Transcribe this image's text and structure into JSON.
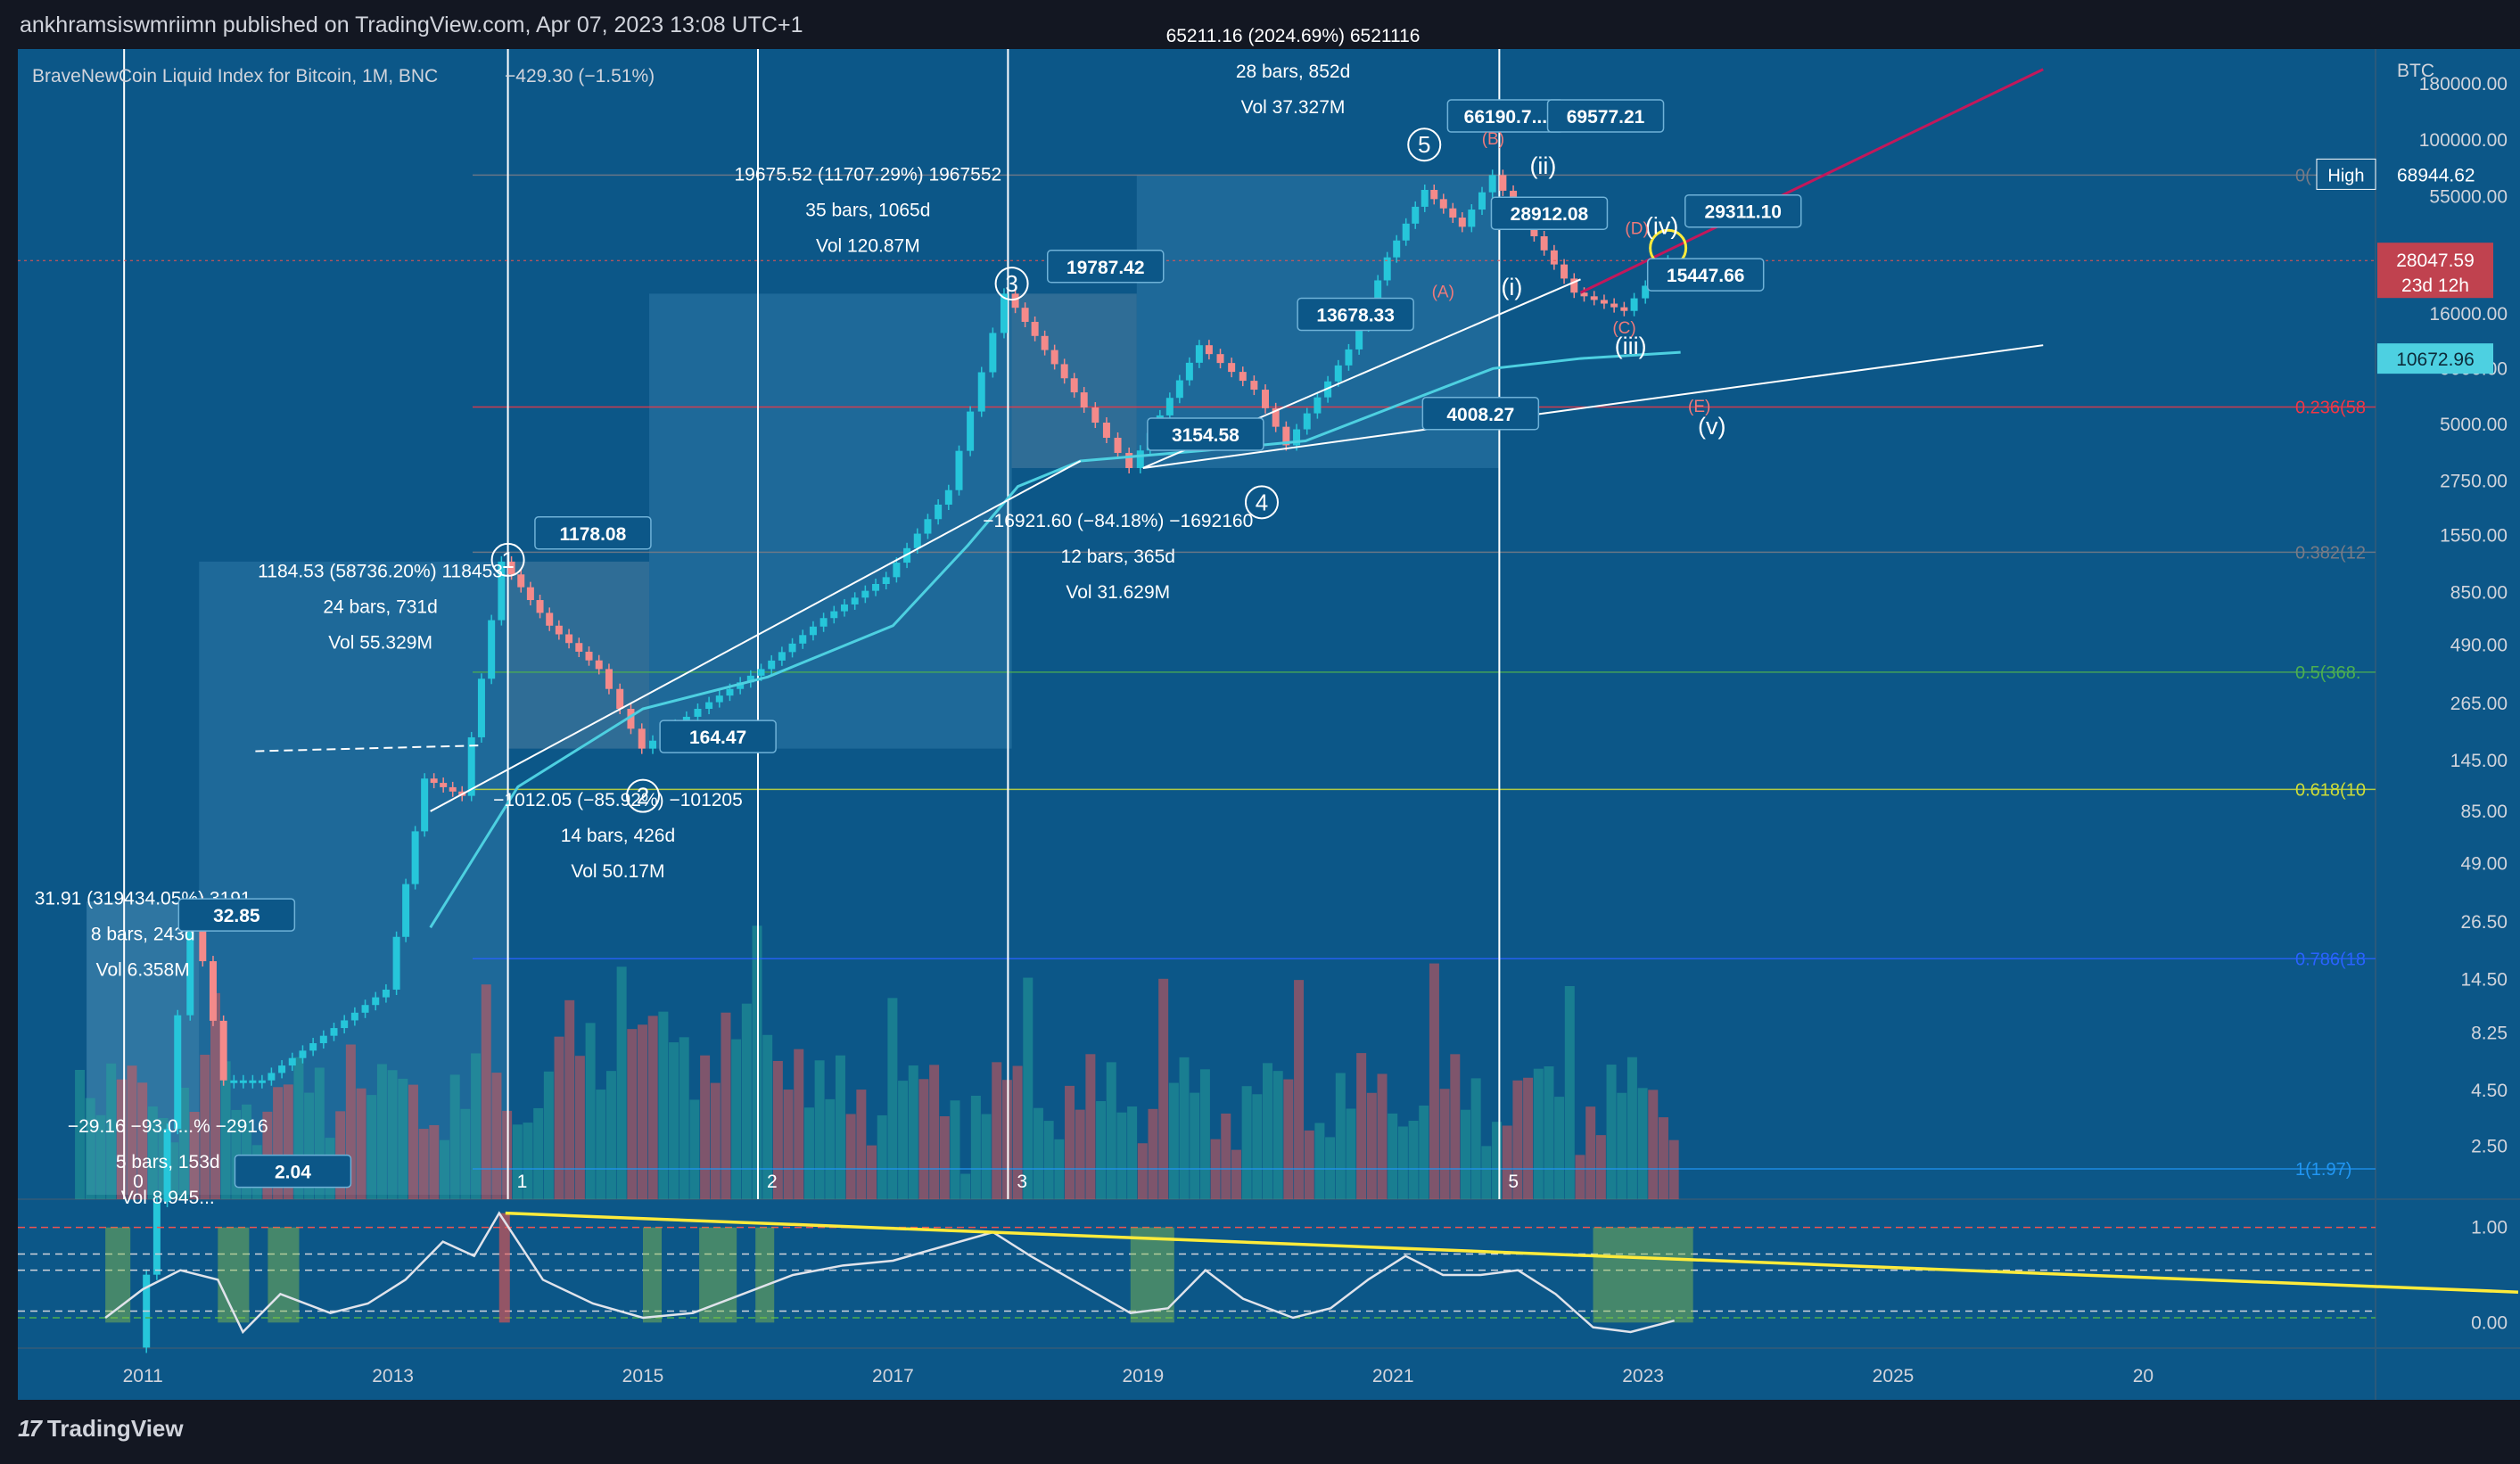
{
  "header": {
    "published": "ankhramsiswmriimn published on TradingView.com, Apr 07, 2023 13:08 UTC+1"
  },
  "footer": {
    "brand": "TradingView"
  },
  "chart_data": {
    "type": "line",
    "title": "BraveNewCoin Liquid Index for Bitcoin, 1M, BNC",
    "change": "−429.30 (−1.51%)",
    "axis_unit": "BTC",
    "y_scale": "log",
    "ylim": [
      1.5,
      260000
    ],
    "xlim": [
      2010.0,
      2030.0
    ],
    "grid": "off",
    "x_ticks": [
      "2011",
      "2013",
      "2015",
      "2017",
      "2019",
      "2021",
      "2023",
      "2025",
      "20"
    ],
    "y_ticks": [
      "180000.00",
      "100000.00",
      "55000.00",
      "28047.59",
      "16000.00",
      "10672.96",
      "9000.00",
      "5000.00",
      "2750.00",
      "1550.00",
      "850.00",
      "490.00",
      "265.00",
      "145.00",
      "85.00",
      "49.00",
      "26.50",
      "14.50",
      "8.25",
      "4.50",
      "2.50"
    ],
    "price_tags": {
      "high_label": "High",
      "high_value": "68944.62",
      "last_value": "28047.59",
      "countdown": "23d 12h",
      "ma_value": "10672.96"
    },
    "fib_levels": [
      {
        "label": "0(",
        "value": 68944.62,
        "color": "#787b86"
      },
      {
        "label": "0.236(58",
        "value": 6000,
        "color": "#f23645"
      },
      {
        "label": "0.382(12",
        "value": 1300,
        "color": "#787b86"
      },
      {
        "label": "0.5(368.",
        "value": 368,
        "color": "#4caf50"
      },
      {
        "label": "0.618(10",
        "value": 107,
        "color": "#cddc39"
      },
      {
        "label": "0.786(18",
        "value": 18,
        "color": "#2962ff"
      },
      {
        "label": "1(1.97)",
        "value": 1.97,
        "color": "#2196f3"
      }
    ],
    "cycle_markers": [
      "0",
      "1",
      "2",
      "3",
      "5"
    ],
    "series": [
      {
        "name": "",
        "x": [
          2011.0,
          2011.25,
          2011.45,
          2011.7,
          2012.0,
          2012.5,
          2013.0,
          2013.3,
          2013.6,
          2013.92,
          2014.3,
          2014.7,
          2015.05,
          2015.5,
          2016.0,
          2016.5,
          2017.0,
          2017.5,
          2017.95,
          2018.5,
          2018.95,
          2019.5,
          2019.95,
          2020.2,
          2020.7,
          2021.0,
          2021.3,
          2021.6,
          2021.85,
          2022.1,
          2022.5,
          2022.9,
          2023.26
        ],
        "values": [
          0.3,
          3,
          32.85,
          5,
          5,
          8,
          13,
          120,
          100,
          1178.08,
          600,
          380,
          164.47,
          250,
          380,
          650,
          1000,
          2500,
          19787.42,
          7000,
          3154.58,
          11500,
          7200,
          4008.27,
          11000,
          29000,
          59000,
          40000,
          69000,
          42000,
          20000,
          16500,
          28047.59
        ]
      }
    ],
    "measurements": [
      {
        "line1": "31.91 (319434.05%) 3191",
        "line2": "8 bars, 243d",
        "line3": "Vol 6.358M"
      },
      {
        "line1": "−29.16 −93.0...% −2916",
        "line2": "5 bars, 153d",
        "line3": "Vol 8.945..."
      },
      {
        "line1": "1184.53 (58736.20%) 118453",
        "line2": "24 bars, 731d",
        "line3": "Vol 55.329M"
      },
      {
        "line1": "−1012.05 (−85.92%) −101205",
        "line2": "14 bars, 426d",
        "line3": "Vol 50.17M"
      },
      {
        "line1": "19675.52 (11707.29%) 1967552",
        "line2": "35 bars, 1065d",
        "line3": "Vol 120.87M"
      },
      {
        "line1": "−16921.60 (−84.18%) −1692160",
        "line2": "12 bars, 365d",
        "line3": "Vol 31.629M"
      },
      {
        "line1": "65211.16 (2024.69%) 6521116",
        "line2": "28 bars, 852d",
        "line3": "Vol 37.327M"
      }
    ],
    "price_labels": [
      "32.85",
      "2.04",
      "1178.08",
      "164.47",
      "19787.42",
      "3154.58",
      "13678.33",
      "4008.27",
      "66190.7...",
      "69577.21",
      "28912.08",
      "29311.10",
      "15447.66"
    ],
    "wave_labels": [
      "1",
      "2",
      "3",
      "4",
      "5"
    ],
    "sub_wave_labels": [
      "(i)",
      "(ii)",
      "(iii)",
      "(iv)",
      "(v)"
    ],
    "abc_labels": [
      "(A)",
      "(B)",
      "(C)",
      "(D)",
      "(E)"
    ],
    "oscillator": {
      "ylim": [
        -0.25,
        1.25
      ],
      "ticks": [
        "1.00",
        "0.00"
      ],
      "x": [
        2010.7,
        2011.0,
        2011.3,
        2011.6,
        2011.8,
        2012.1,
        2012.5,
        2012.8,
        2013.1,
        2013.4,
        2013.65,
        2013.85,
        2014.2,
        2014.6,
        2015.0,
        2015.4,
        2015.8,
        2016.2,
        2016.6,
        2017.0,
        2017.4,
        2017.8,
        2018.1,
        2018.5,
        2018.9,
        2019.2,
        2019.5,
        2019.8,
        2020.2,
        2020.5,
        2020.8,
        2021.1,
        2021.4,
        2021.7,
        2022.0,
        2022.3,
        2022.6,
        2022.9,
        2023.25
      ],
      "values": [
        0.05,
        0.35,
        0.55,
        0.45,
        -0.1,
        0.3,
        0.1,
        0.2,
        0.45,
        0.85,
        0.7,
        1.15,
        0.45,
        0.2,
        0.05,
        0.1,
        0.3,
        0.5,
        0.6,
        0.65,
        0.8,
        0.95,
        0.7,
        0.4,
        0.1,
        0.15,
        0.55,
        0.25,
        0.05,
        0.15,
        0.45,
        0.7,
        0.5,
        0.5,
        0.55,
        0.3,
        -0.05,
        -0.1,
        0.02
      ]
    }
  }
}
